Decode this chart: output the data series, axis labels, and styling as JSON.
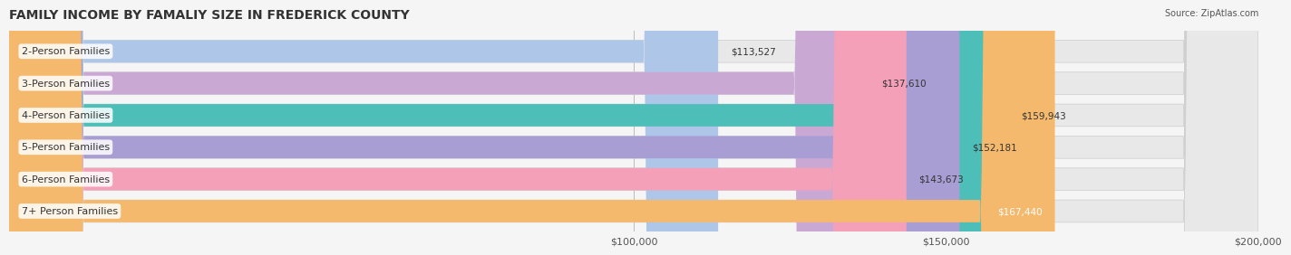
{
  "title": "FAMILY INCOME BY FAMALIY SIZE IN FREDERICK COUNTY",
  "source": "Source: ZipAtlas.com",
  "categories": [
    "2-Person Families",
    "3-Person Families",
    "4-Person Families",
    "5-Person Families",
    "6-Person Families",
    "7+ Person Families"
  ],
  "values": [
    113527,
    137610,
    159943,
    152181,
    143673,
    167440
  ],
  "bar_colors": [
    "#aec6e8",
    "#c9a8d4",
    "#4dbfb8",
    "#a89ed4",
    "#f4a0b8",
    "#f5b96e"
  ],
  "label_colors": [
    "#333333",
    "#333333",
    "#333333",
    "#333333",
    "#333333",
    "#ffffff"
  ],
  "value_labels": [
    "$113,527",
    "$137,610",
    "$159,943",
    "$152,181",
    "$143,673",
    "$167,440"
  ],
  "xmin": 0,
  "xmax": 200000,
  "xticks": [
    100000,
    150000,
    200000
  ],
  "xtick_labels": [
    "$100,000",
    "$150,000",
    "$200,000"
  ],
  "bg_color": "#f5f5f5",
  "bar_bg_color": "#e8e8e8",
  "bar_height": 0.68,
  "title_fontsize": 10,
  "label_fontsize": 8,
  "value_fontsize": 7.5,
  "tick_fontsize": 8
}
